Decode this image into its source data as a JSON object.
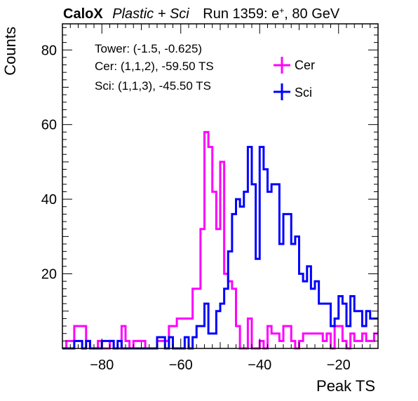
{
  "title": {
    "experiment": "CaloX",
    "detector": "Plastic + Sci",
    "run_label": "Run 1359: e",
    "run_sup": "+",
    "run_suffix": ", 80 GeV"
  },
  "info_lines": [
    "Tower: (-1.5, -0.625)",
    "Cer: (1,1,2), -59.50 TS",
    "Sci: (1,1,3), -45.50 TS"
  ],
  "chart_data": {
    "type": "histogram",
    "xlabel": "Peak TS",
    "ylabel": "Counts",
    "xlim": [
      -90,
      -10
    ],
    "ylim": [
      0,
      87
    ],
    "bin_width": 1,
    "xticks": [
      -80,
      -60,
      -40,
      -20
    ],
    "xtick_labels": [
      "−80",
      "−60",
      "−40",
      "−20"
    ],
    "yticks": [
      20,
      40,
      60,
      80
    ],
    "ytick_labels": [
      "20",
      "40",
      "60",
      "80"
    ],
    "legend_position": "top-right",
    "series": [
      {
        "name": "Cer",
        "color": "#ff00ff",
        "x_start": -90,
        "values": [
          0,
          2,
          2,
          6,
          6,
          6,
          2,
          0,
          0,
          2,
          0,
          0,
          2,
          0,
          0,
          6,
          2,
          0,
          2,
          2,
          2,
          0,
          0,
          0,
          2,
          2,
          2,
          6,
          6,
          8,
          8,
          8,
          8,
          16,
          16,
          32,
          58,
          54,
          42,
          32,
          50,
          20,
          18,
          16,
          6,
          0,
          0,
          8,
          0,
          0,
          2,
          0,
          6,
          4,
          4,
          2,
          6,
          6,
          2,
          0,
          2,
          4,
          4,
          4,
          4,
          4,
          2,
          4,
          0,
          6,
          6,
          2,
          0,
          4,
          2,
          2,
          4,
          2,
          2,
          4
        ]
      },
      {
        "name": "Sci",
        "color": "#0000ff",
        "x_start": -90,
        "values": [
          0,
          0,
          0,
          2,
          2,
          0,
          2,
          0,
          0,
          0,
          2,
          2,
          2,
          0,
          2,
          0,
          0,
          0,
          0,
          0,
          0,
          0,
          0,
          0,
          3,
          3,
          0,
          3,
          0,
          0,
          0,
          3,
          0,
          3,
          6,
          6,
          12,
          4,
          4,
          10,
          12,
          16,
          26,
          36,
          40,
          38,
          42,
          54,
          44,
          24,
          54,
          48,
          42,
          44,
          44,
          28,
          36,
          36,
          28,
          30,
          20,
          18,
          22,
          16,
          18,
          12,
          12,
          12,
          6,
          8,
          14,
          12,
          6,
          14,
          10,
          10,
          6,
          10,
          8,
          8
        ]
      }
    ]
  }
}
